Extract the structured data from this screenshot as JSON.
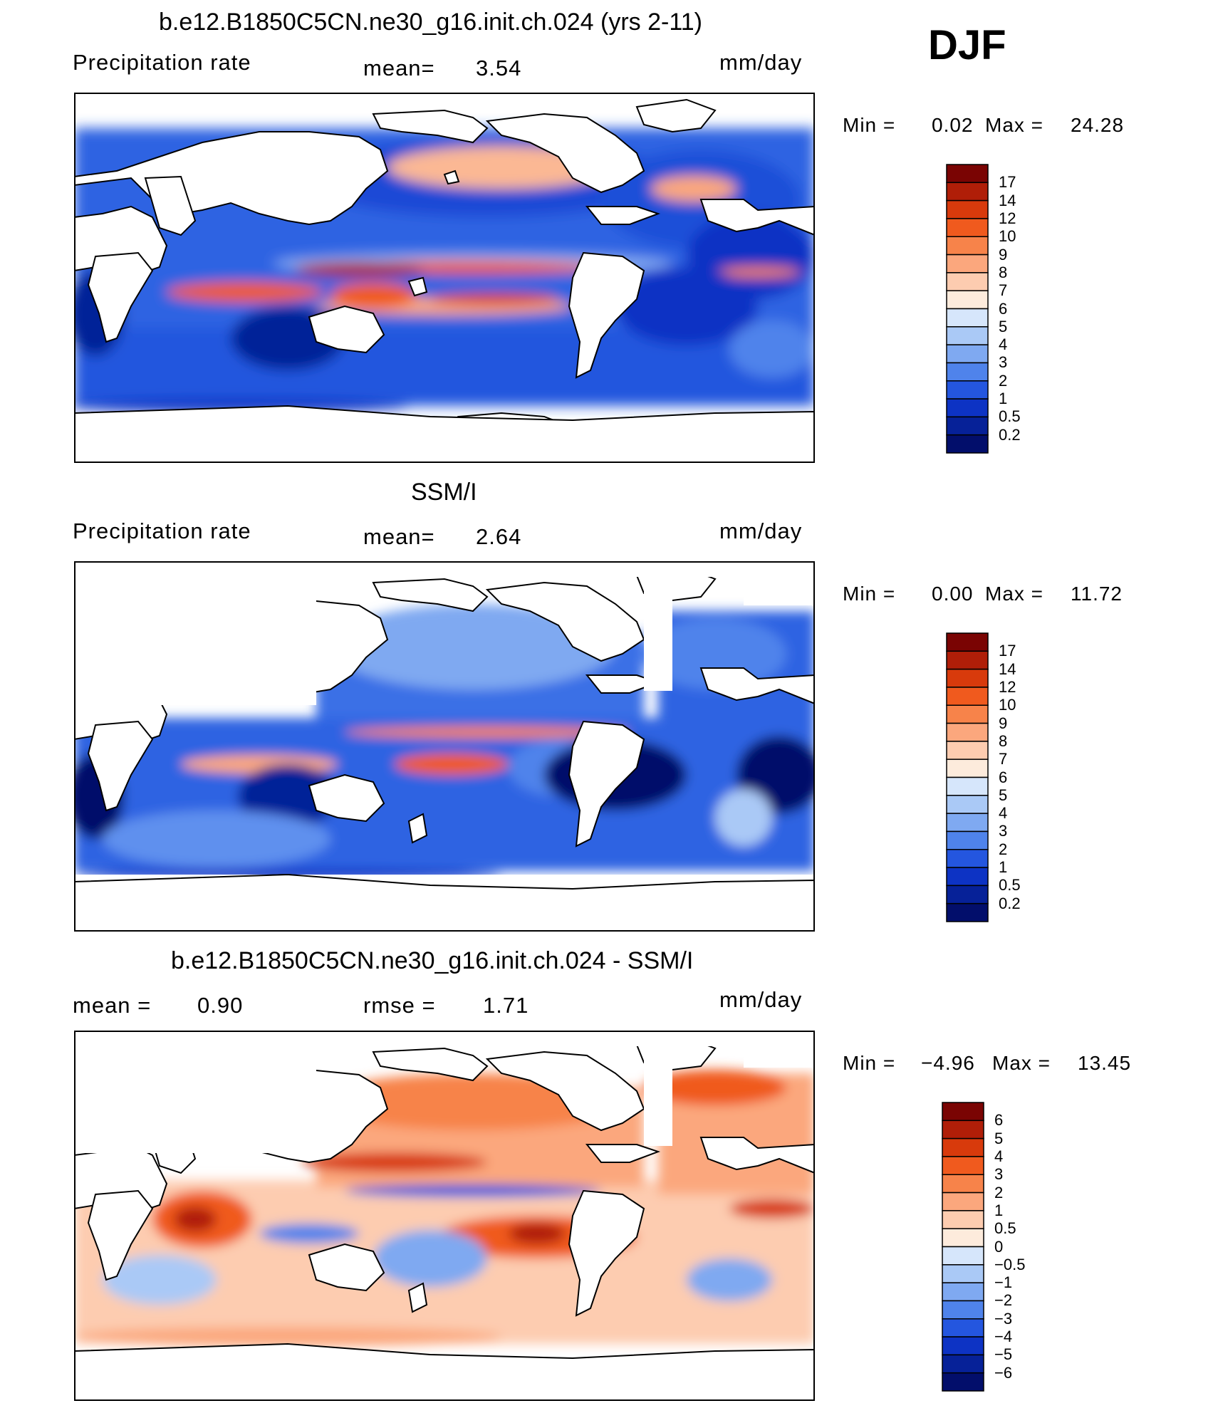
{
  "season": "DJF",
  "panels": [
    {
      "id": "model",
      "title": "b.e12.B1850C5CN.ne30_g16.init.ch.024 (yrs 2-11)",
      "left_label": "Precipitation rate",
      "middle_label": "mean=",
      "middle_value": "3.54",
      "right_label": "mm/day",
      "min_label": "Min =",
      "min_value": "0.02",
      "max_label": "Max =",
      "max_value": "24.28"
    },
    {
      "id": "obs",
      "title": "SSM/I",
      "left_label": "Precipitation rate",
      "middle_label": "mean=",
      "middle_value": "2.64",
      "right_label": "mm/day",
      "min_label": "Min =",
      "min_value": "0.00",
      "max_label": "Max =",
      "max_value": "11.72"
    },
    {
      "id": "diff",
      "title": "b.e12.B1850C5CN.ne30_g16.init.ch.024 - SSM/I",
      "left_label": "mean =",
      "left_value": "0.90",
      "middle_label": "rmse =",
      "middle_value": "1.71",
      "right_label": "mm/day",
      "min_label": "Min =",
      "min_value": "−4.96",
      "max_label": "Max =",
      "max_value": "13.45"
    }
  ],
  "chart_data": [
    {
      "type": "heatmap",
      "title": "b.e12.B1850C5CN.ne30_g16.init.ch.024 (yrs 2-11)",
      "variable": "Precipitation rate",
      "units": "mm/day",
      "mean": 3.54,
      "min": 0.02,
      "max": 24.28,
      "colorbar_levels": [
        "17",
        "14",
        "12",
        "10",
        "9",
        "8",
        "7",
        "6",
        "5",
        "4",
        "3",
        "2",
        "1",
        "0.5",
        "0.2"
      ],
      "colorbar_colors": [
        "#7a0403",
        "#b01e08",
        "#d83a0c",
        "#f05a1e",
        "#f7834a",
        "#fba77d",
        "#fdccb0",
        "#fdebdc",
        "#d6e6fb",
        "#aac9f6",
        "#7fa9f1",
        "#4f83eb",
        "#2456df",
        "#0d33c4",
        "#062198",
        "#020e6b"
      ]
    },
    {
      "type": "heatmap",
      "title": "SSM/I",
      "variable": "Precipitation rate",
      "units": "mm/day",
      "mean": 2.64,
      "min": 0.0,
      "max": 11.72,
      "colorbar_levels": [
        "17",
        "14",
        "12",
        "10",
        "9",
        "8",
        "7",
        "6",
        "5",
        "4",
        "3",
        "2",
        "1",
        "0.5",
        "0.2"
      ],
      "colorbar_colors": [
        "#7a0403",
        "#b01e08",
        "#d83a0c",
        "#f05a1e",
        "#f7834a",
        "#fba77d",
        "#fdccb0",
        "#fdebdc",
        "#d6e6fb",
        "#aac9f6",
        "#7fa9f1",
        "#4f83eb",
        "#2456df",
        "#0d33c4",
        "#062198",
        "#020e6b"
      ]
    },
    {
      "type": "heatmap",
      "title": "b.e12.B1850C5CN.ne30_g16.init.ch.024 - SSM/I",
      "units": "mm/day",
      "mean": 0.9,
      "rmse": 1.71,
      "min": -4.96,
      "max": 13.45,
      "colorbar_levels": [
        "6",
        "5",
        "4",
        "3",
        "2",
        "1",
        "0.5",
        "0",
        "−0.5",
        "−1",
        "−2",
        "−3",
        "−4",
        "−5",
        "−6"
      ],
      "colorbar_colors": [
        "#7a0403",
        "#b01e08",
        "#d83a0c",
        "#f05a1e",
        "#f7834a",
        "#fba77d",
        "#fdccb0",
        "#fdebdc",
        "#d6e6fb",
        "#aac9f6",
        "#7fa9f1",
        "#4f83eb",
        "#2456df",
        "#0d33c4",
        "#062198",
        "#020e6b"
      ]
    }
  ]
}
